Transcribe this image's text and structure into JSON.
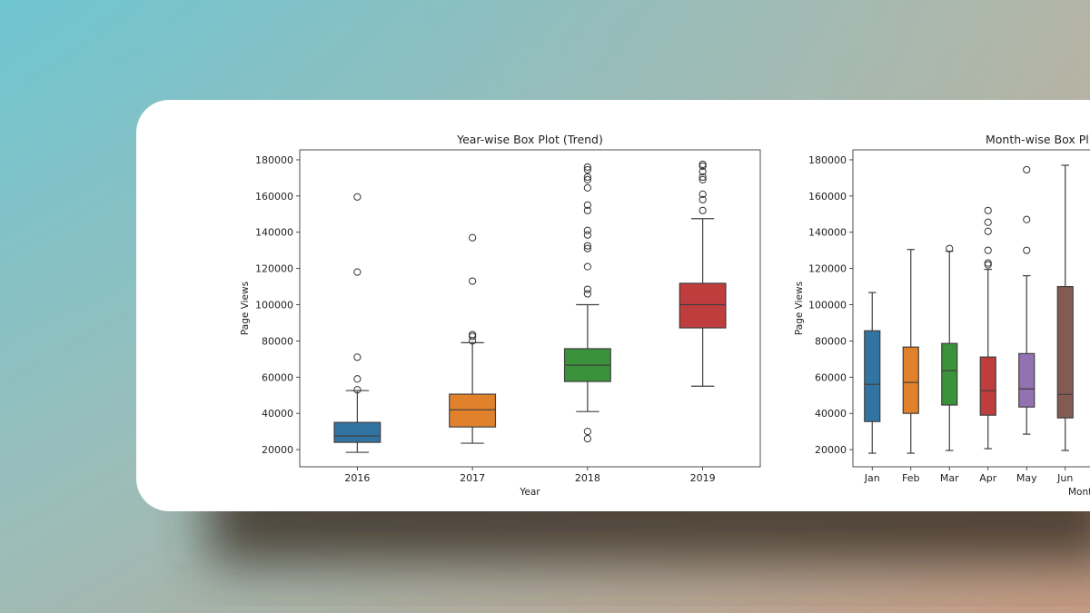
{
  "chart_data": [
    {
      "type": "box",
      "title": "Year-wise Box Plot (Trend)",
      "xlabel": "Year",
      "ylabel": "Page Views",
      "categories": [
        "2016",
        "2017",
        "2018",
        "2019"
      ],
      "colors": [
        "#3274a1",
        "#e1812c",
        "#3a923a",
        "#c03d3e"
      ],
      "min": [
        18500,
        23500,
        41000,
        55000
      ],
      "q1": [
        24000,
        32500,
        57600,
        87200
      ],
      "median": [
        27500,
        42000,
        66600,
        100000
      ],
      "q3": [
        35000,
        50600,
        75700,
        111800
      ],
      "max": [
        52600,
        79000,
        100000,
        147500
      ],
      "outliers": [
        [
          53000,
          59000,
          71000,
          118000,
          159500
        ],
        [
          80000,
          82500,
          83500,
          113000,
          137000
        ],
        [
          26000,
          30000,
          106000,
          108500,
          121000,
          131000,
          132500,
          138500,
          141000,
          152000,
          155000,
          164500,
          169000,
          170500,
          174500,
          176000
        ],
        [
          152000,
          158000,
          161000,
          169000,
          170500,
          173500,
          176500,
          177500
        ]
      ],
      "ylim": [
        10500,
        185500
      ],
      "yticks": [
        20000,
        40000,
        60000,
        80000,
        100000,
        120000,
        140000,
        160000,
        180000
      ]
    },
    {
      "type": "box",
      "title": "Month-wise Box Pl",
      "xlabel": "Mont",
      "ylabel": "Page Views",
      "categories": [
        "Jan",
        "Feb",
        "Mar",
        "Apr",
        "May",
        "Jun"
      ],
      "colors": [
        "#3274a1",
        "#e1812c",
        "#3a923a",
        "#c03d3e",
        "#9372b2",
        "#845b53"
      ],
      "min": [
        18000,
        18000,
        19500,
        20500,
        28500,
        19500
      ],
      "q1": [
        35500,
        40000,
        44600,
        39000,
        43500,
        37500
      ],
      "median": [
        56000,
        57100,
        63600,
        52600,
        53500,
        50500
      ],
      "q3": [
        85600,
        76600,
        78600,
        71100,
        73000,
        110000
      ],
      "max": [
        106700,
        130500,
        129500,
        119500,
        116000,
        177000
      ],
      "outliers": [
        [],
        [],
        [
          131000
        ],
        [
          122000,
          123000,
          130000,
          140500,
          145500,
          152000
        ],
        [
          130000,
          147000,
          174500
        ],
        []
      ],
      "ylim": [
        10500,
        185500
      ],
      "yticks": [
        20000,
        40000,
        60000,
        80000,
        100000,
        120000,
        140000,
        160000,
        180000
      ]
    }
  ]
}
